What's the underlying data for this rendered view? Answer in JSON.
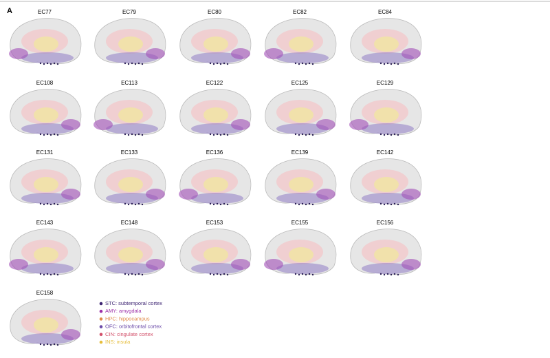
{
  "panel_label": "A",
  "brains": [
    {
      "label": "EC77"
    },
    {
      "label": "EC79"
    },
    {
      "label": "EC80"
    },
    {
      "label": "EC82"
    },
    {
      "label": "EC84"
    },
    {
      "label": "EC108"
    },
    {
      "label": "EC113"
    },
    {
      "label": "EC122"
    },
    {
      "label": "EC125"
    },
    {
      "label": "EC129"
    },
    {
      "label": "EC131"
    },
    {
      "label": "EC133"
    },
    {
      "label": "EC136"
    },
    {
      "label": "EC139"
    },
    {
      "label": "EC142"
    },
    {
      "label": "EC143"
    },
    {
      "label": "EC148"
    },
    {
      "label": "EC153"
    },
    {
      "label": "EC155"
    },
    {
      "label": "EC156"
    },
    {
      "label": "EC158"
    }
  ],
  "legend": [
    {
      "label": "STC: subtemporal cortex",
      "color": "#3d2472"
    },
    {
      "label": "AMY: amygdala",
      "color": "#9c2fa8"
    },
    {
      "label": "HPC: hippocampus",
      "color": "#e08a4a"
    },
    {
      "label": "OFC: orbitofrontal cortex",
      "color": "#6b4aa8"
    },
    {
      "label": "CIN: cingulate cortex",
      "color": "#d2506a"
    },
    {
      "label": "INS: insula",
      "color": "#e6be3c"
    }
  ]
}
